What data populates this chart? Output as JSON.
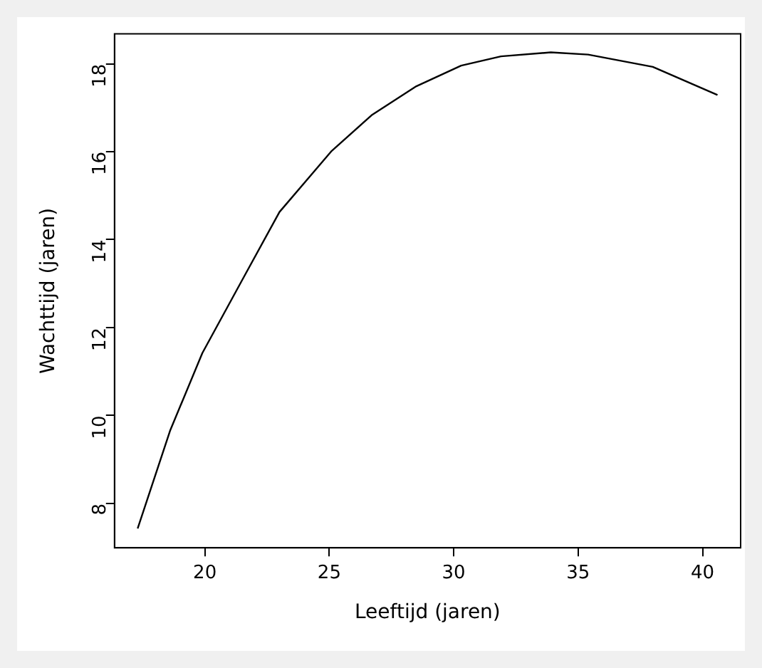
{
  "chart_data": {
    "type": "line",
    "xlabel": "Leeftijd (jaren)",
    "ylabel": "Wachttijd (jaren)",
    "x": [
      17.3,
      18.6,
      19.9,
      21.5,
      23.0,
      25.1,
      26.7,
      28.5,
      30.3,
      31.9,
      33.9,
      35.4,
      38.0,
      40.6
    ],
    "series": [
      {
        "color": "#000000",
        "values": [
          7.43,
          9.65,
          11.42,
          13.08,
          14.63,
          16.02,
          16.83,
          17.49,
          17.96,
          18.17,
          18.26,
          18.21,
          17.93,
          17.29
        ]
      }
    ],
    "xlim": [
      16.37,
      41.53
    ],
    "ylim": [
      6.99,
      18.68
    ],
    "xticks": [
      20,
      25,
      30,
      35,
      40
    ],
    "yticks": [
      8,
      10,
      12,
      14,
      16,
      18
    ],
    "grid": false,
    "legend": false,
    "marker": "none",
    "line_style": "solid"
  }
}
